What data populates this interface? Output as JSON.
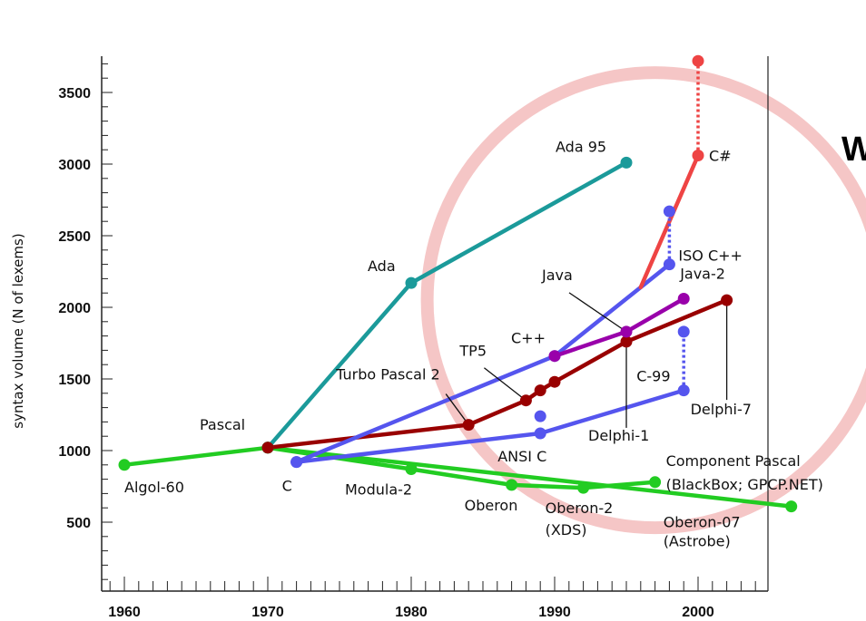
{
  "chart_data": {
    "type": "line",
    "xlabel": "",
    "ylabel": "syntax volume (N of lexems)",
    "xlim": [
      1959,
      2005
    ],
    "ylim": [
      0,
      3700
    ],
    "x_ticks": [
      "1960",
      "1970",
      "1980",
      "1990",
      "2000"
    ],
    "y_ticks": [
      "500",
      "1000",
      "1500",
      "2000",
      "2500",
      "3000",
      "3500"
    ],
    "corner_text": "W",
    "highlight_circle": {
      "center": [
        1997,
        2050
      ],
      "color": "#f5c6c6"
    },
    "series": [
      {
        "id": "green",
        "color": "#22cc22",
        "points": [
          [
            1960,
            900
          ],
          [
            1970,
            1020
          ],
          [
            1980,
            870
          ],
          [
            1987,
            760
          ],
          [
            1992,
            740
          ],
          [
            1997,
            780
          ]
        ]
      },
      {
        "id": "green-oberon07",
        "color": "#22cc22",
        "points": [
          [
            1970,
            1020
          ],
          [
            2006.5,
            610
          ]
        ]
      },
      {
        "id": "teal",
        "color": "#1b9a9a",
        "points": [
          [
            1970,
            1020
          ],
          [
            1980,
            2170
          ],
          [
            1995,
            3010
          ]
        ]
      },
      {
        "id": "darkred",
        "color": "#990000",
        "points": [
          [
            1970,
            1020
          ],
          [
            1984,
            1180
          ],
          [
            1988,
            1350
          ],
          [
            1989,
            1420
          ],
          [
            1990,
            1480
          ],
          [
            1995,
            1760
          ],
          [
            2002,
            2050
          ]
        ]
      },
      {
        "id": "blue-cpp",
        "color": "#5555ee",
        "points": [
          [
            1972,
            920
          ],
          [
            1990,
            1660
          ],
          [
            1998,
            2300
          ]
        ]
      },
      {
        "id": "blue-ansi",
        "color": "#5555ee",
        "points": [
          [
            1972,
            920
          ],
          [
            1989,
            1120
          ],
          [
            1999,
            1420
          ]
        ]
      },
      {
        "id": "purple",
        "color": "#9900aa",
        "points": [
          [
            1990,
            1660
          ],
          [
            1995,
            1830
          ],
          [
            1999,
            2060
          ]
        ]
      },
      {
        "id": "red-cs",
        "color": "#ee4444",
        "marker_points": [
          [
            2000,
            3060
          ]
        ],
        "points": [
          [
            1996,
            2140
          ],
          [
            2000,
            3060
          ]
        ]
      }
    ],
    "dotted_segments": [
      {
        "color": "#ee4444",
        "points": [
          [
            2000,
            3060
          ],
          [
            2000,
            3720
          ]
        ]
      },
      {
        "color": "#5555ee",
        "points": [
          [
            1998,
            2300
          ],
          [
            1998,
            2670
          ]
        ]
      },
      {
        "color": "#5555ee",
        "points": [
          [
            1999,
            1420
          ],
          [
            1999,
            1830
          ]
        ]
      }
    ],
    "extra_markers": [
      {
        "color": "#ee4444",
        "point": [
          2000,
          3720
        ]
      },
      {
        "color": "#5555ee",
        "point": [
          1998,
          2670
        ]
      },
      {
        "color": "#5555ee",
        "point": [
          1999,
          1830
        ]
      },
      {
        "color": "#5555ee",
        "point": [
          1989,
          1240
        ]
      }
    ],
    "annotations": [
      {
        "text": "Algol-60",
        "at": [
          1960,
          900
        ],
        "dx": 0,
        "dy": 30,
        "anchor": "start"
      },
      {
        "text": "Pascal",
        "at": [
          1970,
          1020
        ],
        "dx": -75,
        "dy": -20,
        "anchor": "start"
      },
      {
        "text": "C",
        "at": [
          1972,
          920
        ],
        "dx": -16,
        "dy": 32,
        "anchor": "start"
      },
      {
        "text": "Modula-2",
        "at": [
          1980,
          870
        ],
        "dx": -73,
        "dy": 28,
        "anchor": "start"
      },
      {
        "text": "Oberon",
        "at": [
          1987,
          760
        ],
        "dx": -52,
        "dy": 28,
        "anchor": "start"
      },
      {
        "text": "Oberon-2",
        "at": [
          1992,
          740
        ],
        "dx": -42,
        "dy": 28,
        "anchor": "start"
      },
      {
        "text": "(XDS)",
        "at": [
          1992,
          740
        ],
        "dx": -42,
        "dy": 52,
        "anchor": "start"
      },
      {
        "text": "Component Pascal",
        "at": [
          1997,
          780
        ],
        "dx": 12,
        "dy": -18,
        "anchor": "start"
      },
      {
        "text": "(BlackBox; GPCP.NET)",
        "at": [
          1997,
          780
        ],
        "dx": 12,
        "dy": 8,
        "anchor": "start"
      },
      {
        "text": "Oberon-07",
        "at": [
          2006.5,
          610
        ],
        "dx": -141,
        "dy": 23,
        "anchor": "start"
      },
      {
        "text": "(Astrobe)",
        "at": [
          2006.5,
          610
        ],
        "dx": -141,
        "dy": 44,
        "anchor": "start"
      },
      {
        "text": "Ada",
        "at": [
          1980,
          2170
        ],
        "dx": -48,
        "dy": -13,
        "anchor": "start"
      },
      {
        "text": "Ada 95",
        "at": [
          1995,
          3010
        ],
        "dx": -78,
        "dy": -12,
        "anchor": "start"
      },
      {
        "text": "C#",
        "at": [
          2000,
          3060
        ],
        "dx": 12,
        "dy": 6,
        "anchor": "start"
      },
      {
        "text": "ISO C++",
        "at": [
          1998,
          2300
        ],
        "dx": 10,
        "dy": -4,
        "anchor": "start"
      },
      {
        "text": "Java-2",
        "at": [
          1999,
          2060
        ],
        "dx": -4,
        "dy": -22,
        "anchor": "start"
      },
      {
        "text": "Java",
        "at": [
          1995,
          1830
        ],
        "dx": -93,
        "dy": -57,
        "anchor": "start"
      },
      {
        "text": "C++",
        "at": [
          1990,
          1660
        ],
        "dx": -48,
        "dy": -14,
        "anchor": "start"
      },
      {
        "text": "TP5",
        "at": [
          1988,
          1350
        ],
        "dx": -73,
        "dy": -49,
        "anchor": "start"
      },
      {
        "text": "Turbo Pascal 2",
        "at": [
          1984,
          1180
        ],
        "dx": -146,
        "dy": -50,
        "anchor": "start"
      },
      {
        "text": "C-99",
        "at": [
          1999,
          1420
        ],
        "dx": -52,
        "dy": -10,
        "anchor": "start"
      },
      {
        "text": "Delphi-1",
        "at": [
          1995,
          1760
        ],
        "dx": -42,
        "dy": 109,
        "anchor": "start"
      },
      {
        "text": "Delphi-7",
        "at": [
          2002,
          2050
        ],
        "dx": -40,
        "dy": 126,
        "anchor": "start"
      },
      {
        "text": "ANSI C",
        "at": [
          1989,
          1120
        ],
        "dx": -47,
        "dy": 31,
        "anchor": "start"
      }
    ],
    "leader_lines": [
      {
        "from": [
          1995,
          1830
        ],
        "dx1": -63,
        "dy1": -43
      },
      {
        "from": [
          1988,
          1350
        ],
        "dx1": -46,
        "dy1": -36
      },
      {
        "from": [
          1984,
          1180
        ],
        "dx1": -25,
        "dy1": -34
      },
      {
        "from": [
          1995,
          1760
        ],
        "dx1": 0,
        "dy1": 95
      },
      {
        "from": [
          2002,
          2050
        ],
        "dx1": 0,
        "dy1": 110
      }
    ]
  }
}
